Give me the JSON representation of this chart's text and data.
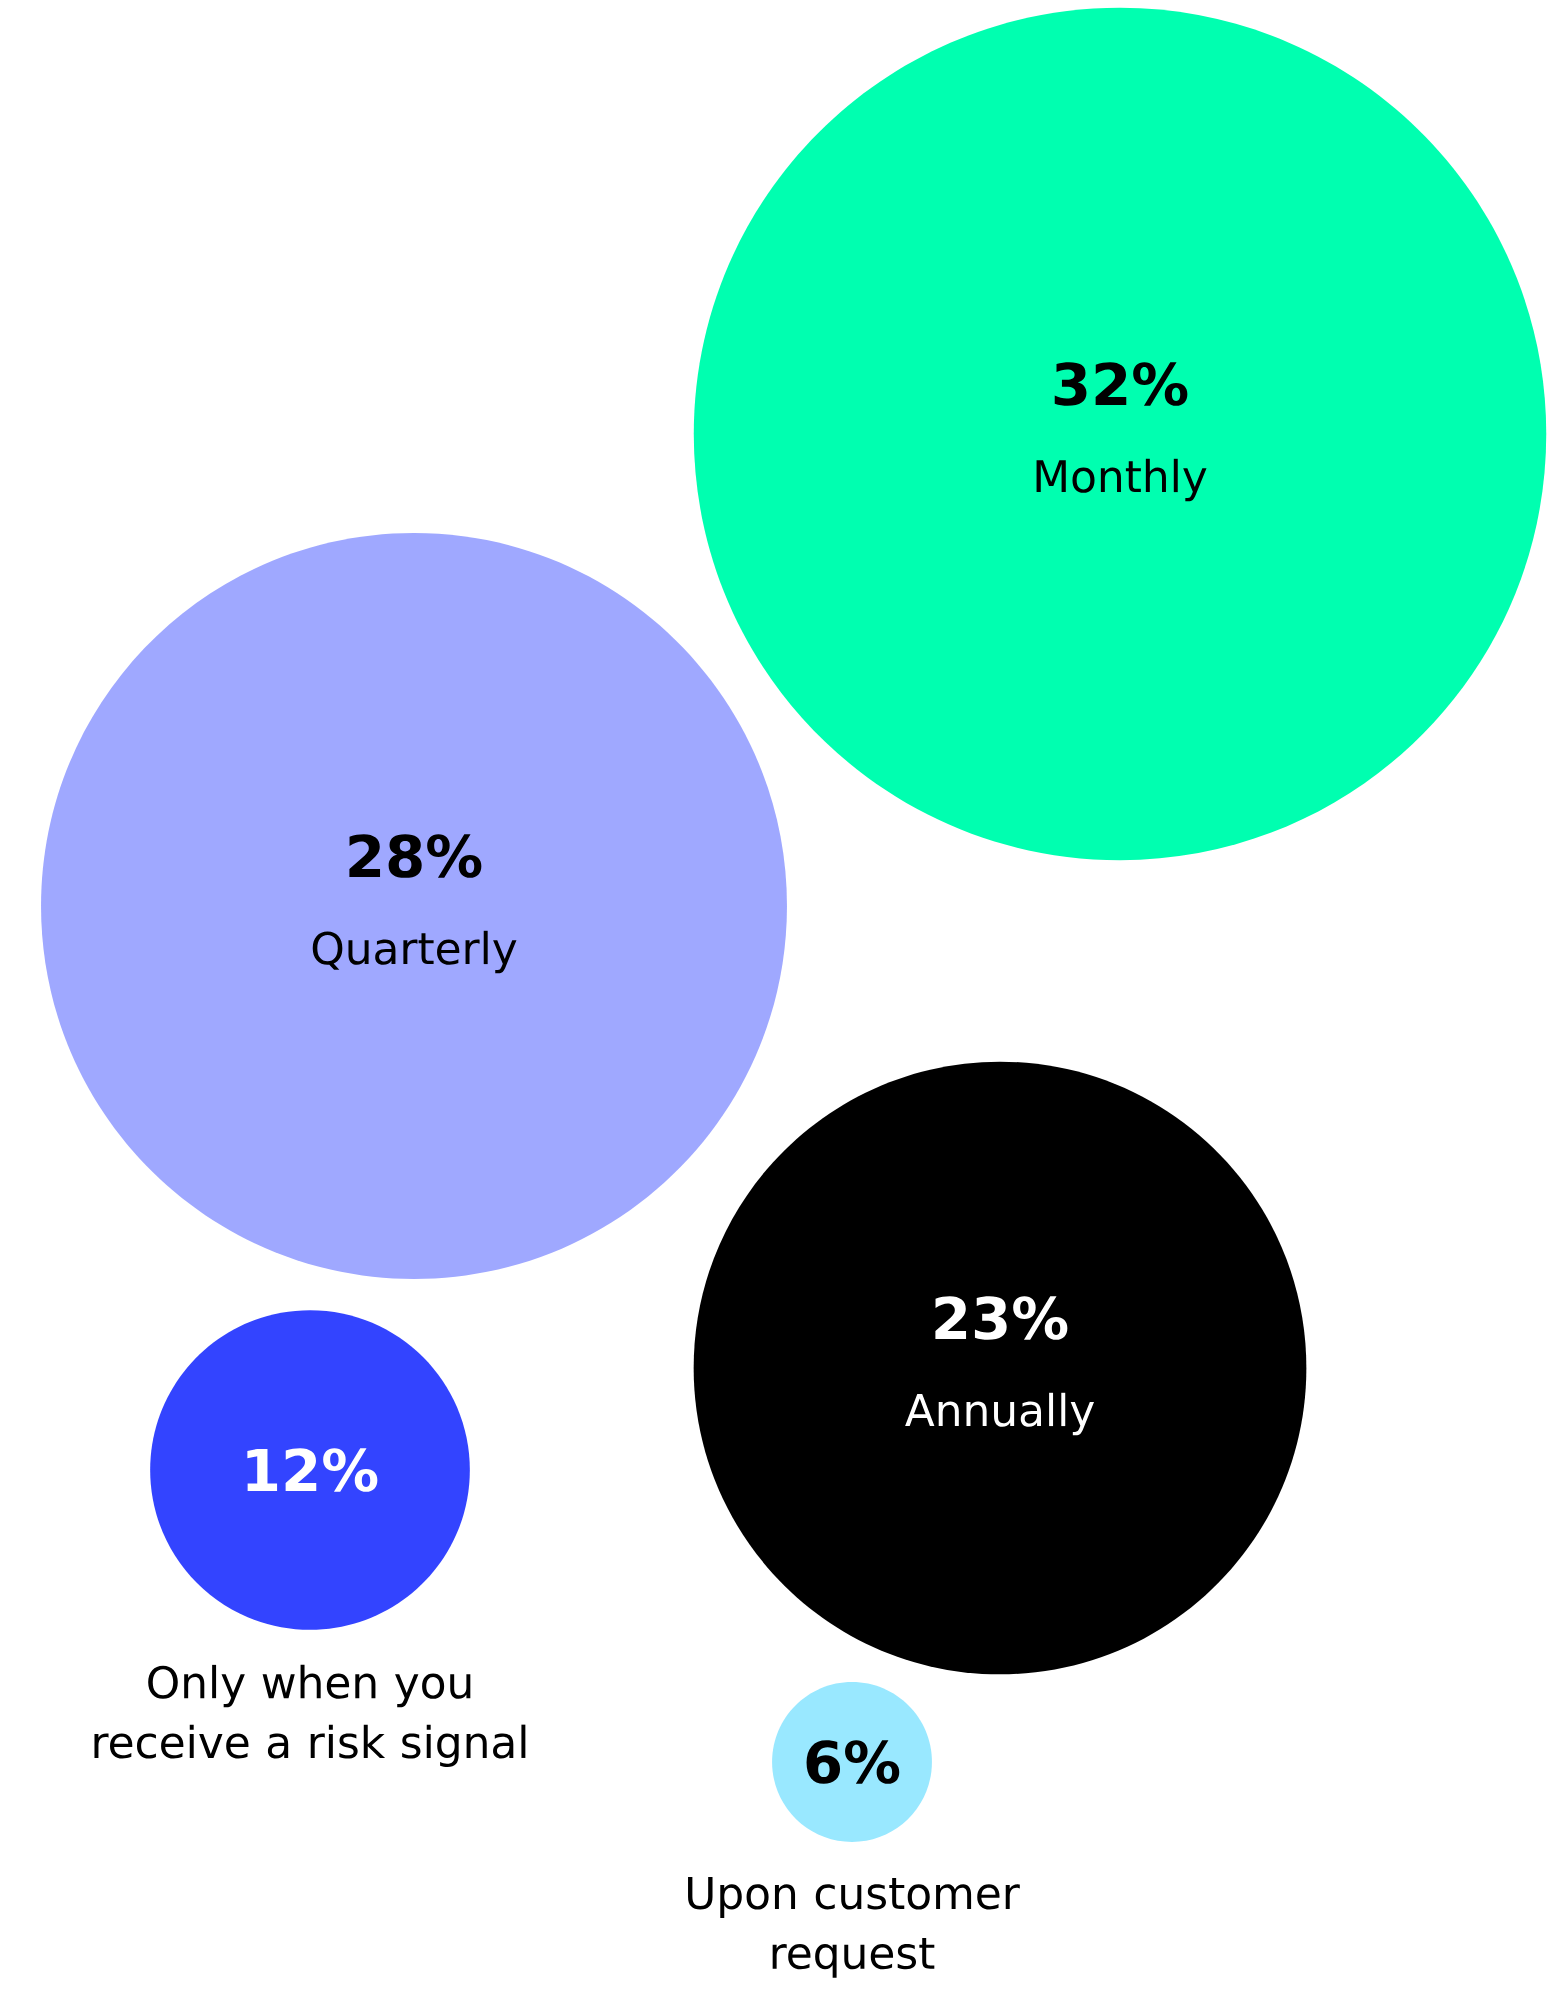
{
  "chart_data": {
    "type": "other",
    "categories": [
      "Monthly",
      "Quarterly",
      "Annually",
      "Only when you receive a risk signal",
      "Upon customer request"
    ],
    "values": [
      32,
      28,
      23,
      12,
      6
    ],
    "value_labels": [
      "32%",
      "28%",
      "23%",
      "12%",
      "6%"
    ],
    "colors": [
      "#00ffb0",
      "#9fa8ff",
      "#000000",
      "#3344ff",
      "#99e8ff"
    ]
  }
}
